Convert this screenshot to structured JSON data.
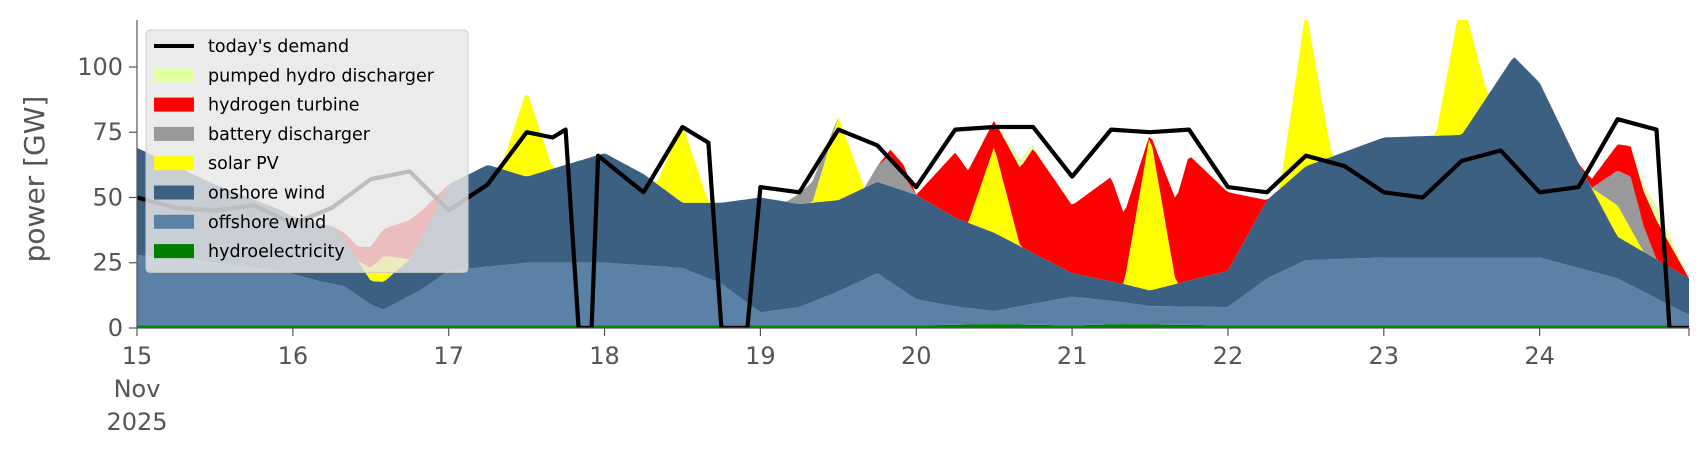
{
  "chart_data": {
    "type": "area",
    "xlabel": "",
    "ylabel": "power [GW]",
    "x_range": [
      "2025-11-15 00:00",
      "2025-11-24 23:00"
    ],
    "x_ticks": [
      {
        "date": "2025-11-15",
        "lines": [
          "15",
          "Nov",
          "2025"
        ]
      },
      {
        "date": "2025-11-16",
        "lines": [
          "16"
        ]
      },
      {
        "date": "2025-11-17",
        "lines": [
          "17"
        ]
      },
      {
        "date": "2025-11-18",
        "lines": [
          "18"
        ]
      },
      {
        "date": "2025-11-19",
        "lines": [
          "19"
        ]
      },
      {
        "date": "2025-11-20",
        "lines": [
          "20"
        ]
      },
      {
        "date": "2025-11-21",
        "lines": [
          "21"
        ]
      },
      {
        "date": "2025-11-22",
        "lines": [
          "22"
        ]
      },
      {
        "date": "2025-11-23",
        "lines": [
          "23"
        ]
      },
      {
        "date": "2025-11-24",
        "lines": [
          "24"
        ]
      }
    ],
    "y_ticks": [
      0,
      25,
      50,
      75,
      100
    ],
    "ylim": [
      0,
      118
    ],
    "grid": false,
    "legend_position": "top-left",
    "legend": [
      {
        "label": "today's demand",
        "color": "#000000",
        "kind": "line"
      },
      {
        "label": "pumped hydro discharger",
        "color": "#e0ffa0",
        "kind": "patch"
      },
      {
        "label": "hydrogen turbine",
        "color": "#ff0000",
        "kind": "patch"
      },
      {
        "label": "battery discharger",
        "color": "#999999",
        "kind": "patch"
      },
      {
        "label": "solar PV",
        "color": "#ffff00",
        "kind": "patch"
      },
      {
        "label": "onshore wind",
        "color": "#3c6082",
        "kind": "patch"
      },
      {
        "label": "offshore wind",
        "color": "#5b82a6",
        "kind": "patch"
      },
      {
        "label": "hydroelectricity",
        "color": "#008000",
        "kind": "patch"
      }
    ],
    "stack_order": [
      "hydroelectricity",
      "offshore wind",
      "onshore wind",
      "solar PV",
      "battery discharger",
      "hydrogen turbine",
      "pumped hydro discharger"
    ],
    "series": [
      {
        "name": "hydroelectricity",
        "points": [
          [
            "2025-11-15 00:00",
            1
          ],
          [
            "2025-11-16 00:00",
            1
          ],
          [
            "2025-11-17 00:00",
            1
          ],
          [
            "2025-11-18 00:00",
            1
          ],
          [
            "2025-11-19 00:00",
            1
          ],
          [
            "2025-11-20 00:00",
            1
          ],
          [
            "2025-11-20 12:00",
            1.5
          ],
          [
            "2025-11-21 00:00",
            1
          ],
          [
            "2025-11-21 08:00",
            1.5
          ],
          [
            "2025-11-22 00:00",
            1
          ],
          [
            "2025-11-23 00:00",
            1
          ],
          [
            "2025-11-24 00:00",
            1
          ],
          [
            "2025-11-24 23:00",
            1
          ]
        ]
      },
      {
        "name": "offshore wind",
        "points": [
          [
            "2025-11-15 00:00",
            27
          ],
          [
            "2025-11-15 12:00",
            24
          ],
          [
            "2025-11-15 22:00",
            21
          ],
          [
            "2025-11-16 04:00",
            17
          ],
          [
            "2025-11-16 08:00",
            15
          ],
          [
            "2025-11-16 12:00",
            8
          ],
          [
            "2025-11-16 14:00",
            6
          ],
          [
            "2025-11-16 20:00",
            14
          ],
          [
            "2025-11-17 00:00",
            21
          ],
          [
            "2025-11-17 12:00",
            24
          ],
          [
            "2025-11-18 00:00",
            24
          ],
          [
            "2025-11-18 12:00",
            22
          ],
          [
            "2025-11-18 18:00",
            16
          ],
          [
            "2025-11-19 00:00",
            5
          ],
          [
            "2025-11-19 06:00",
            7
          ],
          [
            "2025-11-19 12:00",
            13
          ],
          [
            "2025-11-19 18:00",
            20
          ],
          [
            "2025-11-20 00:00",
            10
          ],
          [
            "2025-11-20 06:00",
            7
          ],
          [
            "2025-11-20 12:00",
            5
          ],
          [
            "2025-11-21 00:00",
            11
          ],
          [
            "2025-11-21 12:00",
            7
          ],
          [
            "2025-11-22 00:00",
            7
          ],
          [
            "2025-11-22 06:00",
            18
          ],
          [
            "2025-11-22 12:00",
            25
          ],
          [
            "2025-11-23 00:00",
            26
          ],
          [
            "2025-11-23 12:00",
            26
          ],
          [
            "2025-11-24 00:00",
            26
          ],
          [
            "2025-11-24 12:00",
            18
          ],
          [
            "2025-11-24 23:00",
            4
          ]
        ]
      },
      {
        "name": "onshore wind",
        "points": [
          [
            "2025-11-15 00:00",
            41
          ],
          [
            "2025-11-15 12:00",
            30
          ],
          [
            "2025-11-16 00:00",
            22
          ],
          [
            "2025-11-16 06:00",
            22
          ],
          [
            "2025-11-16 12:00",
            9
          ],
          [
            "2025-11-16 18:00",
            14
          ],
          [
            "2025-11-17 00:00",
            33
          ],
          [
            "2025-11-17 06:00",
            39
          ],
          [
            "2025-11-17 12:00",
            33
          ],
          [
            "2025-11-18 00:00",
            42
          ],
          [
            "2025-11-18 06:00",
            35
          ],
          [
            "2025-11-18 12:00",
            25
          ],
          [
            "2025-11-18 18:00",
            31
          ],
          [
            "2025-11-19 00:00",
            44
          ],
          [
            "2025-11-19 12:00",
            35
          ],
          [
            "2025-11-19 18:00",
            35
          ],
          [
            "2025-11-20 00:00",
            40
          ],
          [
            "2025-11-20 06:00",
            34
          ],
          [
            "2025-11-20 12:00",
            30
          ],
          [
            "2025-11-21 00:00",
            9
          ],
          [
            "2025-11-21 12:00",
            6
          ],
          [
            "2025-11-22 00:00",
            14
          ],
          [
            "2025-11-22 06:00",
            30
          ],
          [
            "2025-11-22 12:00",
            36
          ],
          [
            "2025-11-23 00:00",
            46
          ],
          [
            "2025-11-23 12:00",
            47
          ],
          [
            "2025-11-23 20:00",
            77
          ],
          [
            "2025-11-24 00:00",
            67
          ],
          [
            "2025-11-24 06:00",
            40
          ],
          [
            "2025-11-24 12:00",
            16
          ],
          [
            "2025-11-24 23:00",
            14
          ]
        ]
      },
      {
        "name": "solar PV",
        "points": [
          [
            "2025-11-15 00:00",
            0
          ],
          [
            "2025-11-16 10:00",
            0
          ],
          [
            "2025-11-16 14:00",
            10
          ],
          [
            "2025-11-16 18:00",
            0
          ],
          [
            "2025-11-17 08:00",
            0
          ],
          [
            "2025-11-17 12:00",
            33
          ],
          [
            "2025-11-17 16:00",
            0
          ],
          [
            "2025-11-18 08:00",
            0
          ],
          [
            "2025-11-18 12:00",
            30
          ],
          [
            "2025-11-18 16:00",
            0
          ],
          [
            "2025-11-19 08:00",
            0
          ],
          [
            "2025-11-19 12:00",
            32
          ],
          [
            "2025-11-19 16:00",
            0
          ],
          [
            "2025-11-20 08:00",
            0
          ],
          [
            "2025-11-20 12:00",
            33
          ],
          [
            "2025-11-20 16:00",
            0
          ],
          [
            "2025-11-21 08:00",
            0
          ],
          [
            "2025-11-21 12:00",
            60
          ],
          [
            "2025-11-21 16:00",
            0
          ],
          [
            "2025-11-22 08:00",
            0
          ],
          [
            "2025-11-22 12:00",
            60
          ],
          [
            "2025-11-22 16:00",
            0
          ],
          [
            "2025-11-23 08:00",
            0
          ],
          [
            "2025-11-23 12:00",
            53
          ],
          [
            "2025-11-23 16:00",
            0
          ],
          [
            "2025-11-24 08:00",
            0
          ],
          [
            "2025-11-24 12:00",
            12
          ],
          [
            "2025-11-24 16:00",
            0
          ],
          [
            "2025-11-24 23:00",
            0
          ]
        ]
      },
      {
        "name": "battery discharger",
        "points": [
          [
            "2025-11-15 00:00",
            0
          ],
          [
            "2025-11-19 04:00",
            0
          ],
          [
            "2025-11-19 08:00",
            8
          ],
          [
            "2025-11-19 12:00",
            0
          ],
          [
            "2025-11-19 16:00",
            0
          ],
          [
            "2025-11-19 20:00",
            12
          ],
          [
            "2025-11-20 00:00",
            0
          ],
          [
            "2025-11-24 08:00",
            0
          ],
          [
            "2025-11-24 14:00",
            20
          ],
          [
            "2025-11-24 18:00",
            0
          ],
          [
            "2025-11-24 23:00",
            0
          ]
        ]
      },
      {
        "name": "hydrogen turbine",
        "points": [
          [
            "2025-11-15 00:00",
            0
          ],
          [
            "2025-11-16 06:00",
            0
          ],
          [
            "2025-11-16 12:00",
            8
          ],
          [
            "2025-11-16 18:00",
            15
          ],
          [
            "2025-11-17 00:00",
            0
          ],
          [
            "2025-11-19 18:00",
            0
          ],
          [
            "2025-11-19 22:00",
            4
          ],
          [
            "2025-11-20 00:00",
            0
          ],
          [
            "2025-11-20 06:00",
            25
          ],
          [
            "2025-11-20 12:00",
            10
          ],
          [
            "2025-11-20 18:00",
            40
          ],
          [
            "2025-11-21 00:00",
            26
          ],
          [
            "2025-11-21 06:00",
            40
          ],
          [
            "2025-11-21 12:00",
            0
          ],
          [
            "2025-11-21 18:00",
            48
          ],
          [
            "2025-11-22 00:00",
            30
          ],
          [
            "2025-11-22 06:00",
            0
          ],
          [
            "2025-11-24 06:00",
            0
          ],
          [
            "2025-11-24 12:00",
            10
          ],
          [
            "2025-11-24 18:00",
            15
          ],
          [
            "2025-11-24 23:00",
            0
          ]
        ]
      },
      {
        "name": "pumped hydro discharger",
        "points": [
          [
            "2025-11-15 00:00",
            0
          ],
          [
            "2025-11-20 12:00",
            0
          ],
          [
            "2025-11-20 16:00",
            3
          ],
          [
            "2025-11-20 20:00",
            0
          ],
          [
            "2025-11-24 14:00",
            0
          ],
          [
            "2025-11-24 18:00",
            5
          ],
          [
            "2025-11-24 23:00",
            0
          ]
        ]
      },
      {
        "name": "today's demand",
        "points": [
          [
            "2025-11-15 00:00",
            50
          ],
          [
            "2025-11-15 06:00",
            46
          ],
          [
            "2025-11-15 12:00",
            45
          ],
          [
            "2025-11-15 18:00",
            47
          ],
          [
            "2025-11-16 00:00",
            40
          ],
          [
            "2025-11-16 06:00",
            46
          ],
          [
            "2025-11-16 12:00",
            57
          ],
          [
            "2025-11-16 18:00",
            60
          ],
          [
            "2025-11-17 00:00",
            45
          ],
          [
            "2025-11-17 06:00",
            55
          ],
          [
            "2025-11-17 12:00",
            75
          ],
          [
            "2025-11-17 16:00",
            73
          ],
          [
            "2025-11-17 18:00",
            76
          ],
          [
            "2025-11-17 20:00",
            0
          ],
          [
            "2025-11-17 22:00",
            0
          ],
          [
            "2025-11-17 23:00",
            66
          ],
          [
            "2025-11-18 06:00",
            52
          ],
          [
            "2025-11-18 12:00",
            77
          ],
          [
            "2025-11-18 16:00",
            71
          ],
          [
            "2025-11-18 18:00",
            0
          ],
          [
            "2025-11-18 22:00",
            0
          ],
          [
            "2025-11-19 00:00",
            54
          ],
          [
            "2025-11-19 06:00",
            52
          ],
          [
            "2025-11-19 12:00",
            76
          ],
          [
            "2025-11-19 18:00",
            70
          ],
          [
            "2025-11-20 00:00",
            54
          ],
          [
            "2025-11-20 06:00",
            76
          ],
          [
            "2025-11-20 12:00",
            77
          ],
          [
            "2025-11-20 18:00",
            77
          ],
          [
            "2025-11-21 00:00",
            58
          ],
          [
            "2025-11-21 06:00",
            76
          ],
          [
            "2025-11-21 12:00",
            75
          ],
          [
            "2025-11-21 18:00",
            76
          ],
          [
            "2025-11-22 00:00",
            54
          ],
          [
            "2025-11-22 06:00",
            52
          ],
          [
            "2025-11-22 12:00",
            66
          ],
          [
            "2025-11-22 18:00",
            62
          ],
          [
            "2025-11-23 00:00",
            52
          ],
          [
            "2025-11-23 06:00",
            50
          ],
          [
            "2025-11-23 12:00",
            64
          ],
          [
            "2025-11-23 18:00",
            68
          ],
          [
            "2025-11-24 00:00",
            52
          ],
          [
            "2025-11-24 06:00",
            54
          ],
          [
            "2025-11-24 12:00",
            80
          ],
          [
            "2025-11-24 18:00",
            76
          ],
          [
            "2025-11-24 20:00",
            0
          ],
          [
            "2025-11-24 23:00",
            0
          ]
        ]
      }
    ]
  }
}
